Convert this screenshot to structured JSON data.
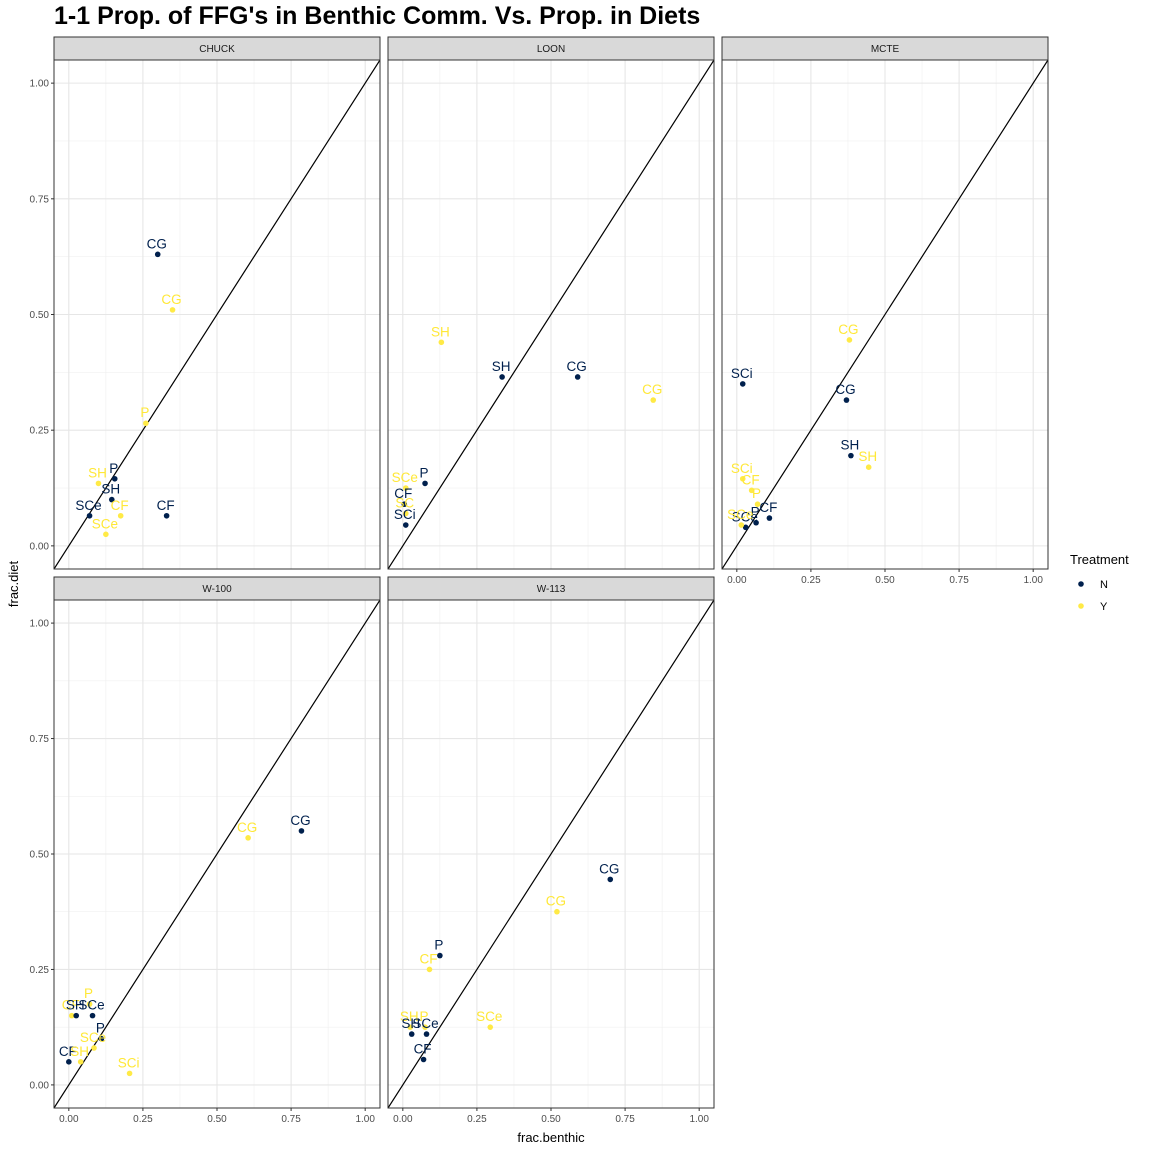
{
  "chart_data": {
    "type": "scatter",
    "title": "1-1 Prop. of FFG's in Benthic Comm. Vs. Prop. in Diets",
    "xlabel": "frac.benthic",
    "ylabel": "frac.diet",
    "xlim": [
      -0.05,
      1.05
    ],
    "ylim": [
      -0.05,
      1.05
    ],
    "x_ticks": [
      "0.00",
      "0.25",
      "0.50",
      "0.75",
      "1.00"
    ],
    "y_ticks": [
      "0.00",
      "0.25",
      "0.50",
      "0.75",
      "1.00"
    ],
    "reference_line": "y = x",
    "grid": true,
    "legend": {
      "title": "Treatment",
      "position": "right",
      "items": [
        {
          "label": "N",
          "color": "#00204d"
        },
        {
          "label": "Y",
          "color": "#ffea46"
        }
      ]
    },
    "panels": [
      {
        "name": "CHUCK",
        "points": [
          {
            "label": "CG",
            "x": 0.3,
            "y": 0.63,
            "treatment": "N"
          },
          {
            "label": "CG",
            "x": 0.35,
            "y": 0.51,
            "treatment": "Y"
          },
          {
            "label": "P",
            "x": 0.26,
            "y": 0.265,
            "treatment": "Y"
          },
          {
            "label": "SH",
            "x": 0.1,
            "y": 0.135,
            "treatment": "Y"
          },
          {
            "label": "P",
            "x": 0.155,
            "y": 0.145,
            "treatment": "N"
          },
          {
            "label": "SH",
            "x": 0.145,
            "y": 0.1,
            "treatment": "N"
          },
          {
            "label": "CF",
            "x": 0.175,
            "y": 0.065,
            "treatment": "Y"
          },
          {
            "label": "SCe",
            "x": 0.07,
            "y": 0.065,
            "treatment": "N"
          },
          {
            "label": "SCe",
            "x": 0.125,
            "y": 0.025,
            "treatment": "Y"
          },
          {
            "label": "CF",
            "x": 0.33,
            "y": 0.065,
            "treatment": "N"
          }
        ]
      },
      {
        "name": "LOON",
        "points": [
          {
            "label": "SH",
            "x": 0.13,
            "y": 0.44,
            "treatment": "Y"
          },
          {
            "label": "SH",
            "x": 0.335,
            "y": 0.365,
            "treatment": "N"
          },
          {
            "label": "CG",
            "x": 0.59,
            "y": 0.365,
            "treatment": "N"
          },
          {
            "label": "CG",
            "x": 0.845,
            "y": 0.315,
            "treatment": "Y"
          },
          {
            "label": "SCe",
            "x": 0.01,
            "y": 0.125,
            "treatment": "Y"
          },
          {
            "label": "P",
            "x": 0.075,
            "y": 0.135,
            "treatment": "N"
          },
          {
            "label": "CF",
            "x": 0.005,
            "y": 0.09,
            "treatment": "N"
          },
          {
            "label": "SC",
            "x": 0.01,
            "y": 0.07,
            "treatment": "Y"
          },
          {
            "label": "SCi",
            "x": 0.01,
            "y": 0.045,
            "treatment": "N"
          }
        ]
      },
      {
        "name": "MCTE",
        "points": [
          {
            "label": "CG",
            "x": 0.38,
            "y": 0.445,
            "treatment": "Y"
          },
          {
            "label": "SCi",
            "x": 0.02,
            "y": 0.35,
            "treatment": "N"
          },
          {
            "label": "CG",
            "x": 0.37,
            "y": 0.315,
            "treatment": "N"
          },
          {
            "label": "SH",
            "x": 0.385,
            "y": 0.195,
            "treatment": "N"
          },
          {
            "label": "SH",
            "x": 0.445,
            "y": 0.17,
            "treatment": "Y"
          },
          {
            "label": "SCi",
            "x": 0.02,
            "y": 0.145,
            "treatment": "Y"
          },
          {
            "label": "CF",
            "x": 0.05,
            "y": 0.12,
            "treatment": "Y"
          },
          {
            "label": "P",
            "x": 0.07,
            "y": 0.09,
            "treatment": "Y"
          },
          {
            "label": "CF",
            "x": 0.11,
            "y": 0.06,
            "treatment": "N"
          },
          {
            "label": "P",
            "x": 0.065,
            "y": 0.05,
            "treatment": "N"
          },
          {
            "label": "SCe",
            "x": 0.03,
            "y": 0.04,
            "treatment": "N"
          },
          {
            "label": "SCe",
            "x": 0.015,
            "y": 0.045,
            "treatment": "Y"
          }
        ]
      },
      {
        "name": "W-100",
        "points": [
          {
            "label": "CG",
            "x": 0.605,
            "y": 0.535,
            "treatment": "Y"
          },
          {
            "label": "CG",
            "x": 0.785,
            "y": 0.55,
            "treatment": "N"
          },
          {
            "label": "P",
            "x": 0.07,
            "y": 0.175,
            "treatment": "Y"
          },
          {
            "label": "CF",
            "x": 0.01,
            "y": 0.15,
            "treatment": "Y"
          },
          {
            "label": "SH",
            "x": 0.025,
            "y": 0.15,
            "treatment": "N"
          },
          {
            "label": "SCe",
            "x": 0.08,
            "y": 0.15,
            "treatment": "N"
          },
          {
            "label": "P",
            "x": 0.11,
            "y": 0.1,
            "treatment": "N"
          },
          {
            "label": "SCe",
            "x": 0.085,
            "y": 0.08,
            "treatment": "Y"
          },
          {
            "label": "CF",
            "x": 0.0,
            "y": 0.05,
            "treatment": "N"
          },
          {
            "label": "SH",
            "x": 0.04,
            "y": 0.05,
            "treatment": "Y"
          },
          {
            "label": "SCi",
            "x": 0.205,
            "y": 0.025,
            "treatment": "Y"
          }
        ]
      },
      {
        "name": "W-113",
        "points": [
          {
            "label": "CG",
            "x": 0.7,
            "y": 0.445,
            "treatment": "N"
          },
          {
            "label": "CG",
            "x": 0.52,
            "y": 0.375,
            "treatment": "Y"
          },
          {
            "label": "P",
            "x": 0.125,
            "y": 0.28,
            "treatment": "N"
          },
          {
            "label": "CF",
            "x": 0.09,
            "y": 0.25,
            "treatment": "Y"
          },
          {
            "label": "SCe",
            "x": 0.295,
            "y": 0.125,
            "treatment": "Y"
          },
          {
            "label": "SH",
            "x": 0.025,
            "y": 0.125,
            "treatment": "Y"
          },
          {
            "label": "P",
            "x": 0.075,
            "y": 0.125,
            "treatment": "Y"
          },
          {
            "label": "SH",
            "x": 0.03,
            "y": 0.11,
            "treatment": "N"
          },
          {
            "label": "SCe",
            "x": 0.08,
            "y": 0.11,
            "treatment": "N"
          },
          {
            "label": "CF",
            "x": 0.07,
            "y": 0.055,
            "treatment": "N"
          }
        ]
      }
    ]
  }
}
